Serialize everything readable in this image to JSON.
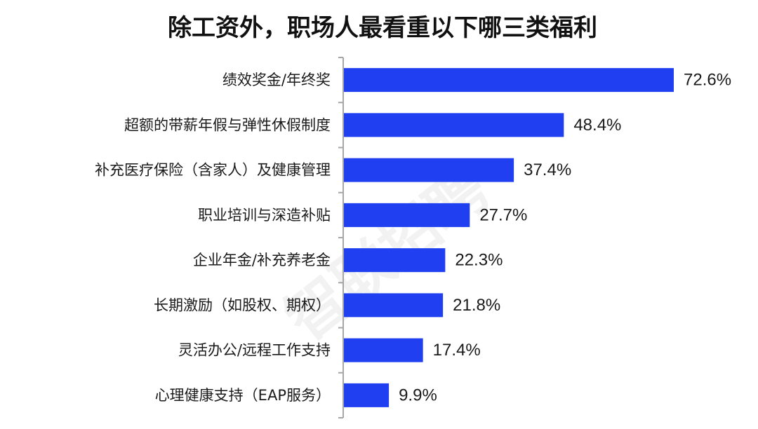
{
  "chart_data": {
    "type": "bar",
    "orientation": "horizontal",
    "title": "除工资外，职场人最看重以下哪三类福利",
    "categories": [
      "绩效奖金/年终奖",
      "超额的带薪年假与弹性休假制度",
      "补充医疗保险（含家人）及健康管理",
      "职业培训与深造补贴",
      "企业年金/补充养老金",
      "长期激励（如股权、期权）",
      "灵活办公/远程工作支持",
      "心理健康支持（EAP服务）"
    ],
    "values": [
      72.6,
      48.4,
      37.4,
      27.7,
      22.3,
      21.8,
      17.4,
      9.9
    ],
    "data_labels": [
      "72.6%",
      "48.4%",
      "37.4%",
      "27.7%",
      "22.3%",
      "21.8%",
      "17.4%",
      "9.9%"
    ],
    "value_unit": "%",
    "xlim": [
      0,
      72.6
    ],
    "grid": false,
    "legend": "none",
    "bar_color": "#1f3ff0",
    "axis_color": "#a6a6a6"
  },
  "watermark": {
    "text": "智联招聘"
  }
}
